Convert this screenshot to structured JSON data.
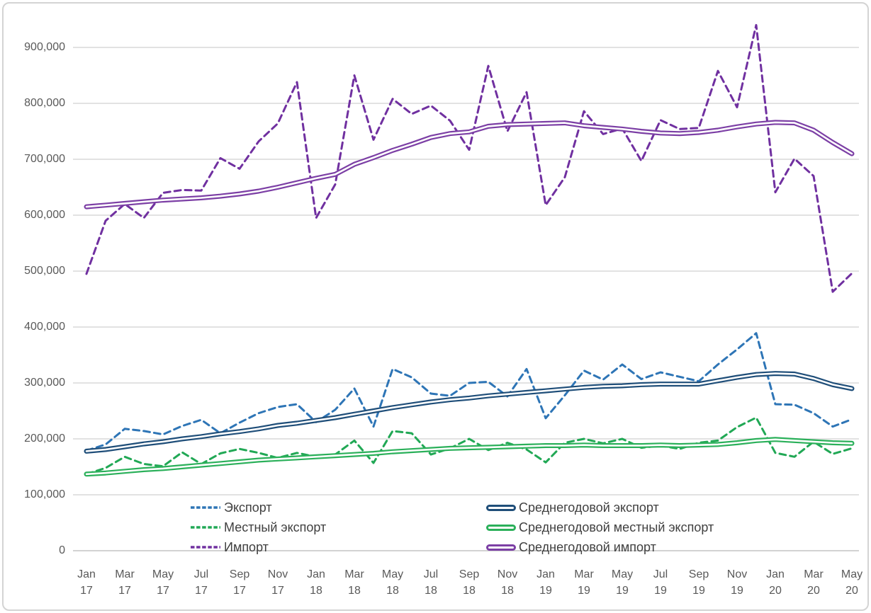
{
  "chart_data": {
    "type": "line",
    "title": "",
    "xlabel": "",
    "ylabel": "",
    "grid": true,
    "legend_position": "bottom-inside",
    "ylim": [
      0,
      950000
    ],
    "y_ticks": [
      0,
      100000,
      200000,
      300000,
      400000,
      500000,
      600000,
      700000,
      800000,
      900000
    ],
    "months": [
      "Jan 17",
      "Feb 17",
      "Mar 17",
      "Apr 17",
      "May 17",
      "Jun 17",
      "Jul 17",
      "Aug 17",
      "Sep 17",
      "Oct 17",
      "Nov 17",
      "Dec 17",
      "Jan 18",
      "Feb 18",
      "Mar 18",
      "Apr 18",
      "May 18",
      "Jun 18",
      "Jul 18",
      "Aug 18",
      "Sep 18",
      "Oct 18",
      "Nov 18",
      "Dec 18",
      "Jan 19",
      "Feb 19",
      "Mar 19",
      "Apr 19",
      "May 19",
      "Jun 19",
      "Jul 19",
      "Aug 19",
      "Sep 19",
      "Oct 19",
      "Nov 19",
      "Dec 19",
      "Jan 20",
      "Feb 20",
      "Mar 20",
      "Apr 20",
      "May 20"
    ],
    "x_tick_every": 2,
    "series": [
      {
        "id": "export-line",
        "name": "Экспорт",
        "style": "dashed",
        "color": "#2E75B6",
        "values": [
          179000,
          190000,
          218000,
          214000,
          208000,
          223000,
          234000,
          210000,
          229000,
          246000,
          257000,
          262000,
          230000,
          252000,
          290000,
          222000,
          325000,
          310000,
          281000,
          277000,
          300000,
          302000,
          276000,
          325000,
          237000,
          278000,
          322000,
          306000,
          333000,
          307000,
          319000,
          311000,
          303000,
          333000,
          360000,
          389000,
          262000,
          261000,
          246000,
          222000,
          235000
        ]
      },
      {
        "id": "local-export-line",
        "name": "Местный экспорт",
        "style": "dashed",
        "color": "#21A855",
        "values": [
          137000,
          148000,
          168000,
          155000,
          151000,
          176000,
          155000,
          174000,
          182000,
          175000,
          166000,
          175000,
          168000,
          172000,
          197000,
          157000,
          214000,
          210000,
          172000,
          183000,
          200000,
          180000,
          193000,
          181000,
          158000,
          193000,
          200000,
          192000,
          200000,
          184000,
          188000,
          182000,
          193000,
          197000,
          221000,
          238000,
          175000,
          168000,
          195000,
          173000,
          183000
        ]
      },
      {
        "id": "import-line",
        "name": "Импорт",
        "style": "dashed",
        "color": "#7030A0",
        "values": [
          495000,
          590000,
          620000,
          595000,
          640000,
          645000,
          644000,
          702000,
          683000,
          732000,
          764000,
          838000,
          595000,
          655000,
          850000,
          735000,
          808000,
          781000,
          796000,
          769000,
          717000,
          867000,
          750000,
          820000,
          618000,
          668000,
          786000,
          745000,
          755000,
          697000,
          770000,
          754000,
          756000,
          858000,
          793000,
          940000,
          641000,
          701000,
          670000,
          463000,
          496000
        ]
      },
      {
        "id": "avg-export-line",
        "name": "Среднегодовой экспорт",
        "style": "solid",
        "color": "#1F4E79",
        "values": [
          178000,
          181000,
          186000,
          191000,
          195000,
          200000,
          204000,
          209000,
          213000,
          218000,
          224000,
          228000,
          233000,
          238000,
          244000,
          250000,
          256000,
          261000,
          266000,
          270000,
          273000,
          277000,
          280000,
          283000,
          286000,
          289000,
          292000,
          294000,
          295000,
          297000,
          298000,
          298000,
          298000,
          304000,
          310000,
          315000,
          317000,
          316000,
          308000,
          297000,
          290000
        ]
      },
      {
        "id": "avg-local-export-line",
        "name": "Среднегодовой местный экспорт",
        "style": "solid",
        "color": "#2BB05A",
        "values": [
          137000,
          139000,
          142000,
          145000,
          147000,
          150000,
          153000,
          156000,
          159000,
          162000,
          164000,
          166000,
          168000,
          170000,
          172000,
          174000,
          177000,
          179000,
          181000,
          183000,
          184000,
          185000,
          186000,
          187000,
          188000,
          188000,
          189000,
          188000,
          188000,
          188000,
          189000,
          188000,
          189000,
          190000,
          193000,
          197000,
          199000,
          197000,
          195000,
          193000,
          192000
        ]
      },
      {
        "id": "avg-import-line",
        "name": "Среднегодовой импорт",
        "style": "solid",
        "color": "#7C3FA5",
        "values": [
          615000,
          618000,
          621000,
          624000,
          627000,
          629000,
          631000,
          634000,
          638000,
          643000,
          650000,
          658000,
          666000,
          673000,
          691000,
          703000,
          716000,
          727000,
          739000,
          746000,
          749000,
          759000,
          762000,
          763000,
          764000,
          765000,
          760000,
          757000,
          754000,
          750000,
          747000,
          746000,
          748000,
          752000,
          758000,
          763000,
          766000,
          765000,
          752000,
          730000,
          710000
        ]
      }
    ],
    "legend_columns": [
      [
        "export-line",
        "local-export-line",
        "import-line"
      ],
      [
        "avg-export-line",
        "avg-local-export-line",
        "avg-import-line"
      ]
    ]
  }
}
